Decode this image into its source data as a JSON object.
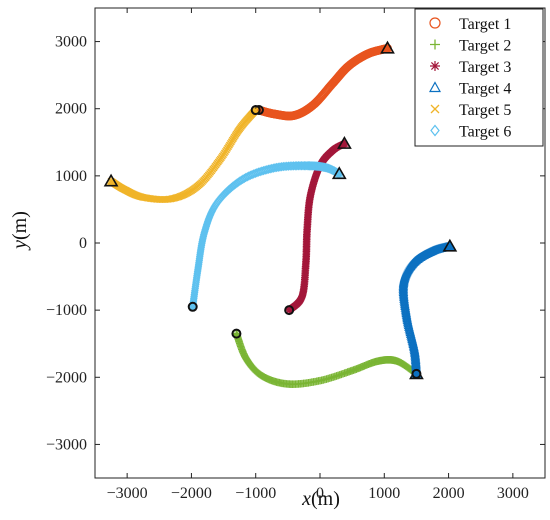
{
  "chart_data": {
    "type": "scatter",
    "title": "",
    "xlabel": {
      "var": "x",
      "unit": "(m)"
    },
    "ylabel": {
      "var": "y",
      "unit": "(m)"
    },
    "xlim": [
      -3500,
      3500
    ],
    "ylim": [
      -3500,
      3500
    ],
    "xticks": [
      -3000,
      -2000,
      -1000,
      0,
      1000,
      2000,
      3000
    ],
    "yticks": [
      -3000,
      -2000,
      -1000,
      0,
      1000,
      2000,
      3000
    ],
    "xtick_labels": [
      "−3000",
      "−2000",
      "−1000",
      "0",
      "1000",
      "2000",
      "3000"
    ],
    "ytick_labels": [
      "−3000",
      "−2000",
      "−1000",
      "0",
      "1000",
      "2000",
      "3000"
    ],
    "grid": false,
    "legend_position": "top-right",
    "start_marker": "circle",
    "end_marker": "triangle",
    "series": [
      {
        "name": "Target 1",
        "marker": "circle-open",
        "color": "#e8541e",
        "points": [
          [
            -950,
            1980
          ],
          [
            -700,
            1920
          ],
          [
            -400,
            1900
          ],
          [
            -100,
            2060
          ],
          [
            200,
            2380
          ],
          [
            450,
            2640
          ],
          [
            750,
            2820
          ],
          [
            1050,
            2900
          ]
        ]
      },
      {
        "name": "Target 2",
        "marker": "plus",
        "color": "#7ab534",
        "points": [
          [
            -1300,
            -1350
          ],
          [
            -1150,
            -1720
          ],
          [
            -900,
            -1980
          ],
          [
            -500,
            -2100
          ],
          [
            0,
            -2050
          ],
          [
            500,
            -1900
          ],
          [
            900,
            -1760
          ],
          [
            1200,
            -1760
          ],
          [
            1500,
            -1950
          ]
        ]
      },
      {
        "name": "Target 3",
        "marker": "asterisk",
        "color": "#a3173a",
        "points": [
          [
            -480,
            -1000
          ],
          [
            -280,
            -800
          ],
          [
            -220,
            -300
          ],
          [
            -200,
            200
          ],
          [
            -150,
            700
          ],
          [
            0,
            1150
          ],
          [
            200,
            1380
          ],
          [
            380,
            1480
          ]
        ]
      },
      {
        "name": "Target 4",
        "marker": "triangle-open",
        "color": "#0c71c1",
        "points": [
          [
            1500,
            -1950
          ],
          [
            1470,
            -1600
          ],
          [
            1350,
            -1100
          ],
          [
            1300,
            -600
          ],
          [
            1450,
            -300
          ],
          [
            1750,
            -120
          ],
          [
            2020,
            -50
          ]
        ]
      },
      {
        "name": "Target 5",
        "marker": "x",
        "color": "#f0b429",
        "points": [
          [
            -1000,
            1980
          ],
          [
            -1250,
            1700
          ],
          [
            -1550,
            1250
          ],
          [
            -1900,
            850
          ],
          [
            -2300,
            660
          ],
          [
            -2750,
            680
          ],
          [
            -3050,
            800
          ],
          [
            -3250,
            920
          ]
        ]
      },
      {
        "name": "Target 6",
        "marker": "diamond-open",
        "color": "#5ec1ef",
        "points": [
          [
            -1980,
            -950
          ],
          [
            -1900,
            -400
          ],
          [
            -1800,
            150
          ],
          [
            -1600,
            600
          ],
          [
            -1200,
            950
          ],
          [
            -700,
            1120
          ],
          [
            -200,
            1150
          ],
          [
            100,
            1120
          ],
          [
            300,
            1030
          ]
        ]
      }
    ]
  }
}
